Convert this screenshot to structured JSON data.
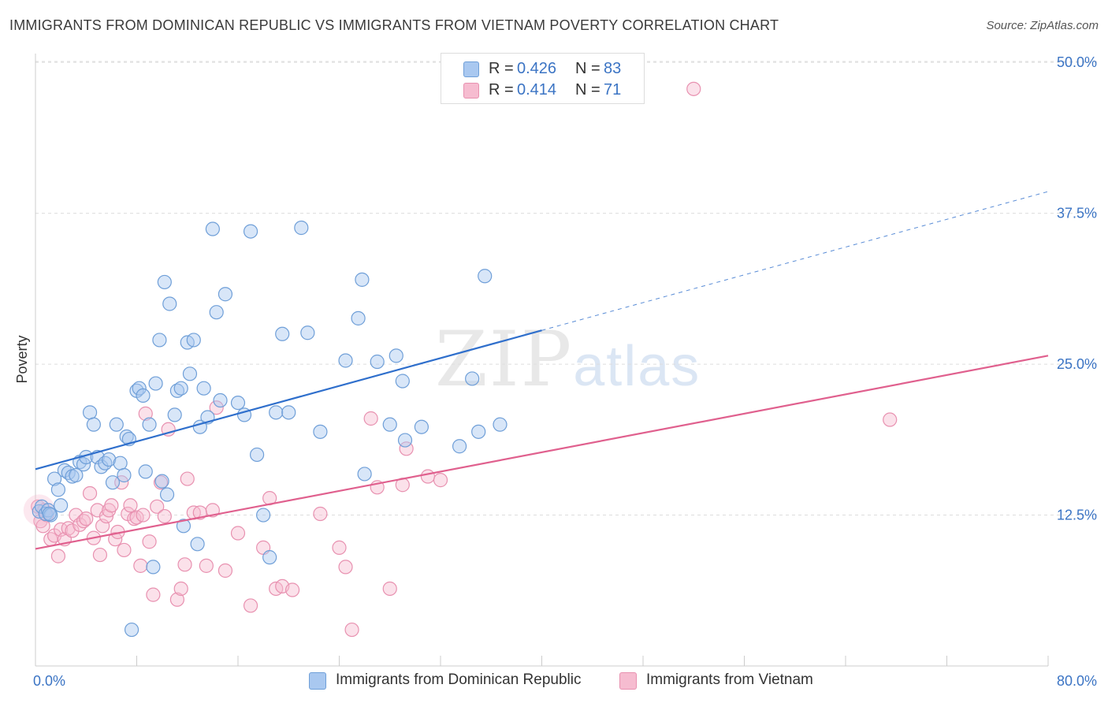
{
  "title": "IMMIGRANTS FROM DOMINICAN REPUBLIC VS IMMIGRANTS FROM VIETNAM POVERTY CORRELATION CHART",
  "source": "Source: ZipAtlas.com",
  "watermark": {
    "zip": "ZIP",
    "atlas": "atlas"
  },
  "legend": {
    "rows": [
      {
        "r_label": "R =",
        "r_value": "0.426",
        "n_label": "N =",
        "n_value": "83"
      },
      {
        "r_label": "R =",
        "r_value": "0.414",
        "n_label": "N =",
        "n_value": "71"
      }
    ]
  },
  "bottom_legend": [
    {
      "label": "Immigrants from Dominican Republic"
    },
    {
      "label": "Immigrants from Vietnam"
    }
  ],
  "colors": {
    "blue_fill": "#a9c8f0",
    "blue_stroke": "#6f9fd8",
    "blue_line": "#2f6fcc",
    "pink_fill": "#f6bcd0",
    "pink_stroke": "#e891b0",
    "pink_line": "#e0608e",
    "grid": "#dddddd",
    "tick_label": "#3b74c4"
  },
  "chart_data": {
    "type": "scatter",
    "title": "IMMIGRANTS FROM DOMINICAN REPUBLIC VS IMMIGRANTS FROM VIETNAM POVERTY CORRELATION CHART",
    "xlabel": "",
    "ylabel": "Poverty",
    "xlim": [
      0,
      80
    ],
    "ylim": [
      0,
      50
    ],
    "x_tick_labels": [
      "0.0%",
      "80.0%"
    ],
    "y_tick_labels": [
      "12.5%",
      "25.0%",
      "37.5%",
      "50.0%"
    ],
    "y_ticks": [
      12.5,
      25.0,
      37.5,
      50.0
    ],
    "grid": true,
    "legend_position": "top-center",
    "series": [
      {
        "name": "Immigrants from Dominican Republic",
        "color": "#a9c8f0",
        "points": [
          [
            0.3,
            12.8
          ],
          [
            0.5,
            13.2
          ],
          [
            0.8,
            12.6
          ],
          [
            1.0,
            12.9
          ],
          [
            1.2,
            12.5
          ],
          [
            1.5,
            15.5
          ],
          [
            1.8,
            14.6
          ],
          [
            2.0,
            13.3
          ],
          [
            2.3,
            16.2
          ],
          [
            2.6,
            16.0
          ],
          [
            2.9,
            15.7
          ],
          [
            3.2,
            15.8
          ],
          [
            3.5,
            16.9
          ],
          [
            3.8,
            16.7
          ],
          [
            4.0,
            17.3
          ],
          [
            4.3,
            21.0
          ],
          [
            4.6,
            20.0
          ],
          [
            4.9,
            17.3
          ],
          [
            5.2,
            16.5
          ],
          [
            5.5,
            16.8
          ],
          [
            5.8,
            17.1
          ],
          [
            6.1,
            15.2
          ],
          [
            6.4,
            20.0
          ],
          [
            6.7,
            16.8
          ],
          [
            7.0,
            15.8
          ],
          [
            7.2,
            19.0
          ],
          [
            7.4,
            18.8
          ],
          [
            7.6,
            3.0
          ],
          [
            8.0,
            22.8
          ],
          [
            8.2,
            23.0
          ],
          [
            8.5,
            22.4
          ],
          [
            8.7,
            16.1
          ],
          [
            9.0,
            20.0
          ],
          [
            9.3,
            8.2
          ],
          [
            9.5,
            23.4
          ],
          [
            9.8,
            27.0
          ],
          [
            10.0,
            15.3
          ],
          [
            10.2,
            31.8
          ],
          [
            10.4,
            14.2
          ],
          [
            10.6,
            30.0
          ],
          [
            11.0,
            20.8
          ],
          [
            11.2,
            22.8
          ],
          [
            11.5,
            23.0
          ],
          [
            11.7,
            11.6
          ],
          [
            12.0,
            26.8
          ],
          [
            12.2,
            24.2
          ],
          [
            12.5,
            27.0
          ],
          [
            12.8,
            10.1
          ],
          [
            13.0,
            19.8
          ],
          [
            13.3,
            23.0
          ],
          [
            13.6,
            20.6
          ],
          [
            14.0,
            36.2
          ],
          [
            14.3,
            29.3
          ],
          [
            14.6,
            22.0
          ],
          [
            15.0,
            30.8
          ],
          [
            16.0,
            21.8
          ],
          [
            16.5,
            20.8
          ],
          [
            17.0,
            36.0
          ],
          [
            17.5,
            17.5
          ],
          [
            18.0,
            12.5
          ],
          [
            18.5,
            9.0
          ],
          [
            19.0,
            21.0
          ],
          [
            19.5,
            27.5
          ],
          [
            20.0,
            21.0
          ],
          [
            21.0,
            36.3
          ],
          [
            21.5,
            27.6
          ],
          [
            22.5,
            19.4
          ],
          [
            24.5,
            25.3
          ],
          [
            25.5,
            28.8
          ],
          [
            25.8,
            32.0
          ],
          [
            26.0,
            15.9
          ],
          [
            27.0,
            25.2
          ],
          [
            28.0,
            20.0
          ],
          [
            28.5,
            25.7
          ],
          [
            29.0,
            23.6
          ],
          [
            29.2,
            18.7
          ],
          [
            30.5,
            19.8
          ],
          [
            33.5,
            18.2
          ],
          [
            34.5,
            23.8
          ],
          [
            35.0,
            19.4
          ],
          [
            35.5,
            32.3
          ],
          [
            36.7,
            20.0
          ],
          [
            1.1,
            12.6
          ]
        ]
      },
      {
        "name": "Immigrants from Vietnam",
        "color": "#f6bcd0",
        "points": [
          [
            0.2,
            13.2
          ],
          [
            0.4,
            12.0
          ],
          [
            0.6,
            11.6
          ],
          [
            0.9,
            12.5
          ],
          [
            1.2,
            10.5
          ],
          [
            1.5,
            10.8
          ],
          [
            1.8,
            9.1
          ],
          [
            2.0,
            11.3
          ],
          [
            2.3,
            10.5
          ],
          [
            2.6,
            11.4
          ],
          [
            2.9,
            11.2
          ],
          [
            3.2,
            12.5
          ],
          [
            3.5,
            11.7
          ],
          [
            3.8,
            12.0
          ],
          [
            4.0,
            12.2
          ],
          [
            4.3,
            14.3
          ],
          [
            4.6,
            10.6
          ],
          [
            4.9,
            12.9
          ],
          [
            5.1,
            9.2
          ],
          [
            5.3,
            11.6
          ],
          [
            5.6,
            12.4
          ],
          [
            5.8,
            12.9
          ],
          [
            6.0,
            13.3
          ],
          [
            6.3,
            10.5
          ],
          [
            6.5,
            11.1
          ],
          [
            6.8,
            15.2
          ],
          [
            7.0,
            9.6
          ],
          [
            7.3,
            12.6
          ],
          [
            7.5,
            13.3
          ],
          [
            7.8,
            12.2
          ],
          [
            8.0,
            12.3
          ],
          [
            8.3,
            8.3
          ],
          [
            8.5,
            12.5
          ],
          [
            8.7,
            20.9
          ],
          [
            9.0,
            10.3
          ],
          [
            9.3,
            5.9
          ],
          [
            9.6,
            13.2
          ],
          [
            9.9,
            15.2
          ],
          [
            10.2,
            12.4
          ],
          [
            10.5,
            19.6
          ],
          [
            11.2,
            5.5
          ],
          [
            11.5,
            6.4
          ],
          [
            11.8,
            8.4
          ],
          [
            12.0,
            15.5
          ],
          [
            12.5,
            12.7
          ],
          [
            13.0,
            12.7
          ],
          [
            13.5,
            8.3
          ],
          [
            14.0,
            12.9
          ],
          [
            14.3,
            21.4
          ],
          [
            15.0,
            7.9
          ],
          [
            16.0,
            11.0
          ],
          [
            17.0,
            5.0
          ],
          [
            18.0,
            9.8
          ],
          [
            18.5,
            13.9
          ],
          [
            19.0,
            6.4
          ],
          [
            19.5,
            6.6
          ],
          [
            20.3,
            6.3
          ],
          [
            22.5,
            12.6
          ],
          [
            24.0,
            9.8
          ],
          [
            24.5,
            8.2
          ],
          [
            25.0,
            3.0
          ],
          [
            26.5,
            20.5
          ],
          [
            27.0,
            14.8
          ],
          [
            28.0,
            6.4
          ],
          [
            29.0,
            15.0
          ],
          [
            29.3,
            18.0
          ],
          [
            31.0,
            15.7
          ],
          [
            32.0,
            15.4
          ],
          [
            52.0,
            47.8
          ],
          [
            67.5,
            20.4
          ],
          [
            0.7,
            12.9
          ]
        ]
      }
    ],
    "trend_lines": [
      {
        "series": "Immigrants from Dominican Republic",
        "x": [
          0,
          40
        ],
        "y": [
          16.3,
          27.8
        ],
        "dashed_extension_to": [
          80,
          39.3
        ]
      },
      {
        "series": "Immigrants from Vietnam",
        "x": [
          0,
          80
        ],
        "y": [
          9.7,
          25.7
        ]
      }
    ]
  }
}
